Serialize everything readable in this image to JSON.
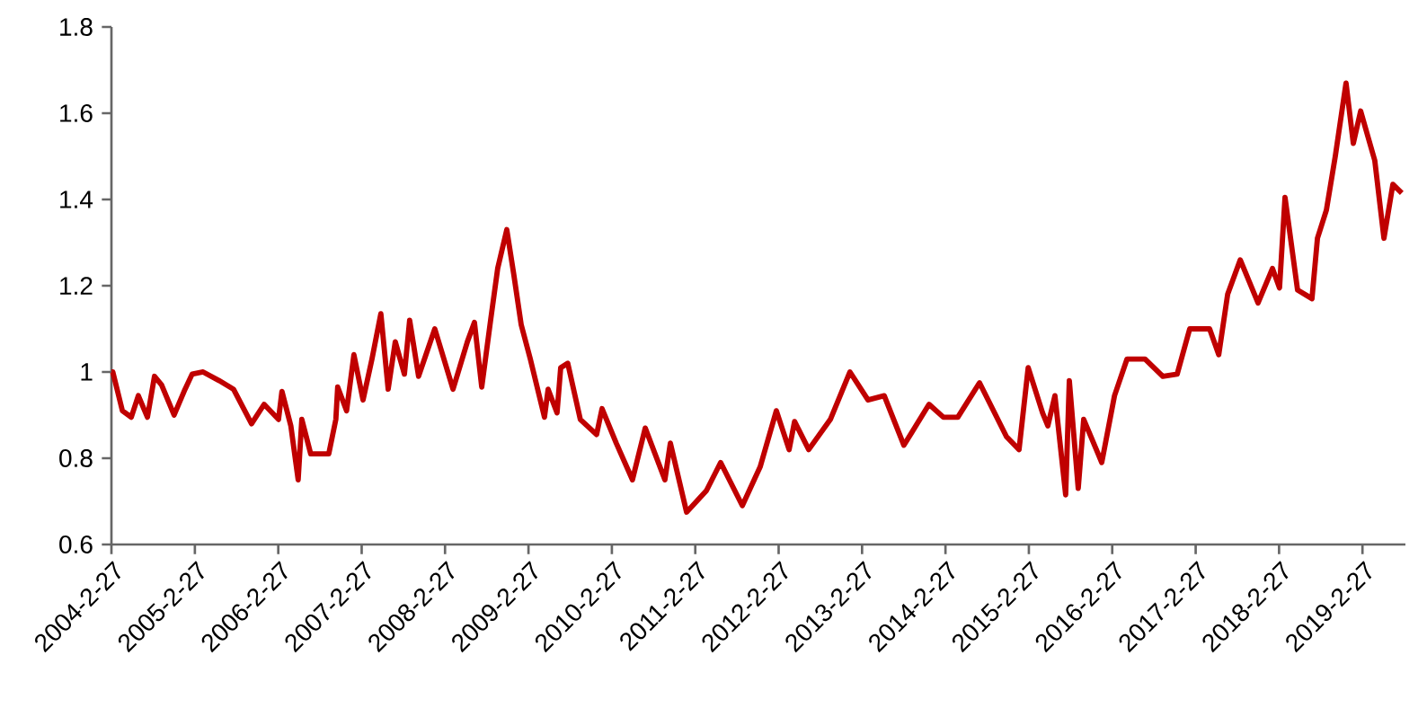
{
  "chart_data": {
    "type": "line",
    "x": [
      "2004-02-27",
      "2004-03-04",
      "2004-04-15",
      "2004-05-24",
      "2004-06-24",
      "2004-08-03",
      "2004-09-03",
      "2004-10-04",
      "2004-11-28",
      "2005-01-15",
      "2005-02-15",
      "2005-04-04",
      "2005-06-13",
      "2005-08-15",
      "2005-11-02",
      "2005-12-27",
      "2006-02-28",
      "2006-03-15",
      "2006-04-23",
      "2006-05-25",
      "2006-06-10",
      "2006-07-19",
      "2006-10-06",
      "2006-11-06",
      "2006-11-14",
      "2006-12-23",
      "2007-01-24",
      "2007-03-05",
      "2007-04-13",
      "2007-05-22",
      "2007-06-23",
      "2007-07-24",
      "2007-09-02",
      "2007-09-25",
      "2007-11-03",
      "2008-01-13",
      "2008-04-02",
      "2008-06-04",
      "2008-07-05",
      "2008-08-06",
      "2008-09-14",
      "2008-10-15",
      "2008-11-24",
      "2008-12-25",
      "2009-01-26",
      "2009-03-07",
      "2009-05-08",
      "2009-05-24",
      "2009-07-02",
      "2009-07-18",
      "2009-08-18",
      "2009-10-12",
      "2009-12-22",
      "2010-01-15",
      "2010-03-18",
      "2010-05-28",
      "2010-07-23",
      "2010-10-17",
      "2010-11-10",
      "2011-01-20",
      "2011-04-17",
      "2011-06-18",
      "2011-09-21",
      "2011-12-08",
      "2012-02-17",
      "2012-04-13",
      "2012-05-07",
      "2012-07-08",
      "2012-10-11",
      "2013-01-05",
      "2013-03-25",
      "2013-06-04",
      "2013-08-29",
      "2013-12-17",
      "2014-02-18",
      "2014-04-22",
      "2014-07-26",
      "2014-11-21",
      "2015-01-15",
      "2015-02-24",
      "2015-04-28",
      "2015-05-21",
      "2015-06-21",
      "2015-08-07",
      "2015-08-23",
      "2015-10-01",
      "2015-10-25",
      "2016-01-12",
      "2016-03-08",
      "2016-05-02",
      "2016-07-20",
      "2016-10-06",
      "2016-12-08",
      "2017-02-01",
      "2017-04-29",
      "2017-06-08",
      "2017-07-17",
      "2017-09-10",
      "2017-11-27",
      "2018-01-29",
      "2018-03-01",
      "2018-03-25",
      "2018-05-19",
      "2018-07-21",
      "2018-08-14",
      "2018-09-22",
      "2018-10-31",
      "2018-12-17",
      "2019-01-18",
      "2019-02-19",
      "2019-04-22",
      "2019-06-01",
      "2019-07-10",
      "2019-08-18"
    ],
    "series": [
      {
        "color": "#c00000",
        "values": [
          1.0,
          1.0,
          0.91,
          0.895,
          0.945,
          0.895,
          0.99,
          0.97,
          0.9,
          0.96,
          0.995,
          1.0,
          0.98,
          0.96,
          0.88,
          0.925,
          0.89,
          0.955,
          0.875,
          0.75,
          0.89,
          0.81,
          0.81,
          0.89,
          0.965,
          0.91,
          1.04,
          0.935,
          1.03,
          1.135,
          0.96,
          1.07,
          0.995,
          1.12,
          0.99,
          1.1,
          0.96,
          1.07,
          1.115,
          0.965,
          1.12,
          1.24,
          1.33,
          1.225,
          1.11,
          1.03,
          0.895,
          0.96,
          0.905,
          1.01,
          1.02,
          0.89,
          0.855,
          0.915,
          0.835,
          0.75,
          0.87,
          0.75,
          0.835,
          0.675,
          0.725,
          0.79,
          0.69,
          0.78,
          0.91,
          0.82,
          0.885,
          0.82,
          0.89,
          1.0,
          0.935,
          0.945,
          0.83,
          0.925,
          0.895,
          0.895,
          0.975,
          0.85,
          0.82,
          1.01,
          0.905,
          0.875,
          0.945,
          0.715,
          0.98,
          0.73,
          0.89,
          0.79,
          0.945,
          1.03,
          1.03,
          0.99,
          0.995,
          1.1,
          1.1,
          1.04,
          1.18,
          1.26,
          1.16,
          1.24,
          1.195,
          1.405,
          1.19,
          1.17,
          1.31,
          1.375,
          1.5,
          1.67,
          1.53,
          1.605,
          1.49,
          1.31,
          1.435,
          1.415
        ]
      }
    ],
    "xlim": [
      "2004-02-27",
      "2019-09-03"
    ],
    "xticks": [
      {
        "value": "2004-02-27",
        "label": "2004-2-27"
      },
      {
        "value": "2005-02-27",
        "label": "2005-2-27"
      },
      {
        "value": "2006-02-27",
        "label": "2006-2-27"
      },
      {
        "value": "2007-02-27",
        "label": "2007-2-27"
      },
      {
        "value": "2008-02-27",
        "label": "2008-2-27"
      },
      {
        "value": "2009-02-27",
        "label": "2009-2-27"
      },
      {
        "value": "2010-02-27",
        "label": "2010-2-27"
      },
      {
        "value": "2011-02-27",
        "label": "2011-2-27"
      },
      {
        "value": "2012-02-27",
        "label": "2012-2-27"
      },
      {
        "value": "2013-02-27",
        "label": "2013-2-27"
      },
      {
        "value": "2014-02-27",
        "label": "2014-2-27"
      },
      {
        "value": "2015-02-27",
        "label": "2015-2-27"
      },
      {
        "value": "2016-02-27",
        "label": "2016-2-27"
      },
      {
        "value": "2017-02-27",
        "label": "2017-2-27"
      },
      {
        "value": "2018-02-27",
        "label": "2018-2-27"
      },
      {
        "value": "2019-02-27",
        "label": "2019-2-27"
      }
    ],
    "ylim": [
      0.6,
      1.8
    ],
    "yticks": [
      0.6,
      0.8,
      1,
      1.2,
      1.4,
      1.6,
      1.8
    ]
  }
}
